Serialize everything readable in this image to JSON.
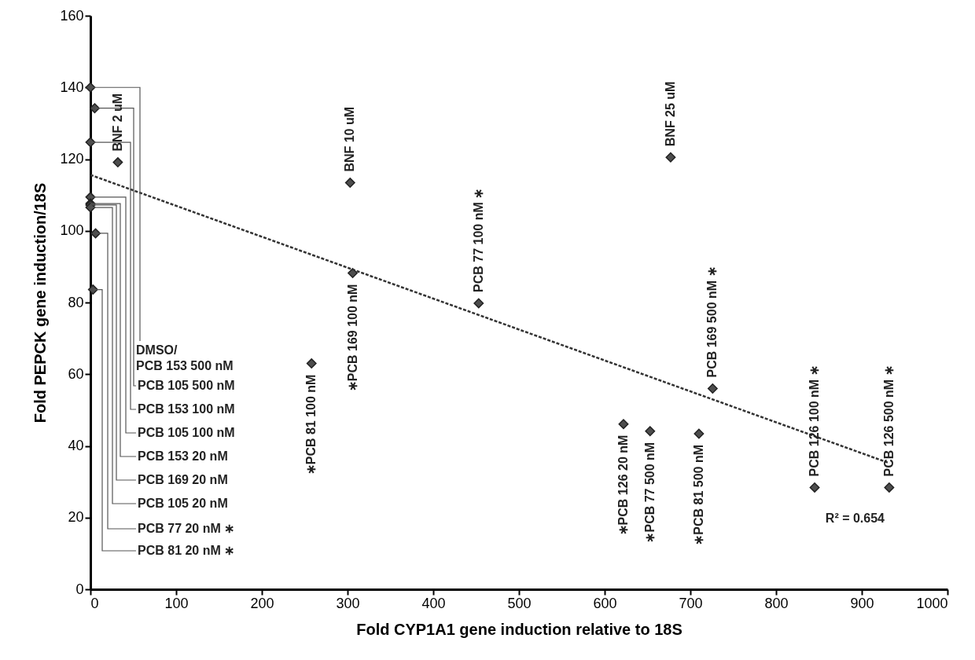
{
  "chart_data": {
    "type": "scatter",
    "xlabel": "Fold CYP1A1 gene induction relative to 18S",
    "ylabel": "Fold PEPCK gene induction/18S",
    "xlim": [
      0,
      1000
    ],
    "xticks": [
      0,
      100,
      200,
      300,
      400,
      500,
      600,
      700,
      800,
      900,
      1000
    ],
    "ylim": [
      0,
      160
    ],
    "yticks": [
      0,
      20,
      40,
      60,
      80,
      100,
      120,
      140,
      160
    ],
    "grid": false,
    "marker": "diamond",
    "series": [
      {
        "type": "scatter",
        "color": "#4d4d4d",
        "x": [
          0,
          5,
          0,
          0,
          0,
          0,
          0,
          6,
          3,
          32,
          258,
          303,
          306,
          453,
          677,
          622,
          653,
          710,
          726,
          845,
          932
        ],
        "values": [
          140,
          134.2,
          124.7,
          109.4,
          107.6,
          107.2,
          106.5,
          99.3,
          83.6,
          119.1,
          63,
          113.4,
          88.2,
          79.8,
          120.5,
          46.1,
          44.1,
          43.4,
          56,
          28.4,
          28.4
        ]
      },
      {
        "type": "line",
        "color": "#333333",
        "marker": "none",
        "line_style": "dashed",
        "x": [
          0,
          932
        ],
        "values": [
          115.6,
          35.2
        ]
      }
    ],
    "annotations": [
      {
        "text": "DMSO/\nPCB 153 500 nM",
        "x": 0,
        "y": 140
      },
      {
        "text": "PCB 105 500 nM",
        "x": 5,
        "y": 134.2
      },
      {
        "text": "PCB 153 100 nM",
        "x": 0,
        "y": 124.7
      },
      {
        "text": "PCB 105 100 nM",
        "x": 0,
        "y": 109.4
      },
      {
        "text": "PCB 153 20 nM",
        "x": 0,
        "y": 107.6
      },
      {
        "text": "PCB 169 20 nM",
        "x": 0,
        "y": 107.2
      },
      {
        "text": "PCB 105 20 nM",
        "x": 0,
        "y": 106.5
      },
      {
        "text": "PCB 77 20 nM ∗",
        "x": 6,
        "y": 99.3
      },
      {
        "text": "PCB 81 20 nM ∗",
        "x": 3,
        "y": 83.6
      },
      {
        "text": "BNF 2 uM",
        "x": 32,
        "y": 119.1
      },
      {
        "text": "∗PCB 81 100 nM",
        "x": 258,
        "y": 63
      },
      {
        "text": "BNF 10 uM",
        "x": 303,
        "y": 113.4
      },
      {
        "text": "∗PCB 169 100 nM",
        "x": 306,
        "y": 88.2
      },
      {
        "text": "PCB 77 100 nM ∗",
        "x": 453,
        "y": 79.8
      },
      {
        "text": "BNF 25 uM",
        "x": 677,
        "y": 120.5
      },
      {
        "text": "∗PCB 126 20 nM",
        "x": 622,
        "y": 46.1
      },
      {
        "text": "∗PCB 77 500 nM",
        "x": 653,
        "y": 44.1
      },
      {
        "text": "∗PCB 81 500 nM",
        "x": 710,
        "y": 43.4
      },
      {
        "text": "PCB 169 500 nM ∗",
        "x": 726,
        "y": 56
      },
      {
        "text": "PCB 126 100 nM ∗",
        "x": 845,
        "y": 28.4
      },
      {
        "text": "PCB 126 500 nM ∗",
        "x": 932,
        "y": 28.4
      },
      "R² = 0.654"
    ]
  }
}
